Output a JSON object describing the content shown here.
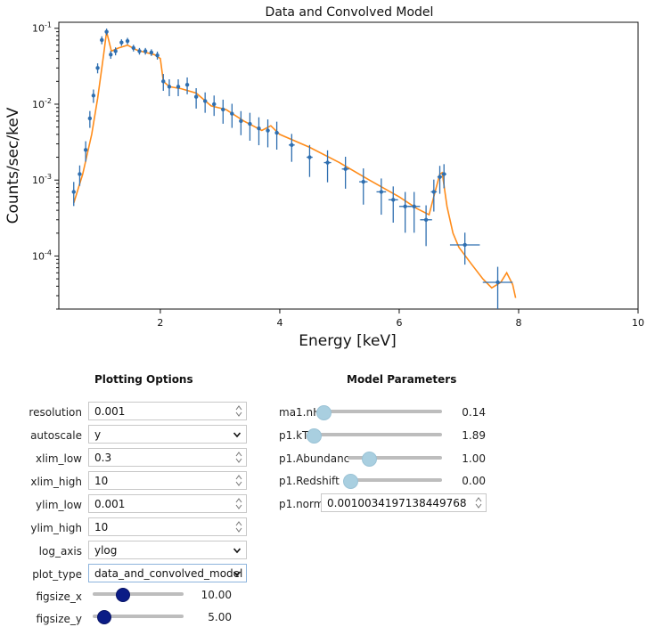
{
  "plot": {
    "title": "Data and Convolved Model",
    "xlabel": "Energy [keV]",
    "ylabel": "Counts/sec/keV",
    "xticks": [
      "2",
      "4",
      "6",
      "8",
      "10"
    ],
    "yticks": [
      "10^-1",
      "10^-2",
      "10^-3",
      "10^-4"
    ],
    "data_color": "#2f6fb0",
    "model_color": "#ff8c1a"
  },
  "chart_data": {
    "type": "scatter",
    "title": "Data and Convolved Model",
    "xlabel": "Energy [keV]",
    "ylabel": "Counts/sec/keV",
    "xlim": [
      0.3,
      10
    ],
    "ylim": [
      2e-05,
      0.12
    ],
    "yscale": "log",
    "series": [
      {
        "name": "data",
        "style": "errorbar",
        "x": [
          0.55,
          0.65,
          0.75,
          0.82,
          0.88,
          0.95,
          1.02,
          1.1,
          1.17,
          1.25,
          1.35,
          1.45,
          1.55,
          1.65,
          1.75,
          1.85,
          1.95,
          2.05,
          2.15,
          2.3,
          2.45,
          2.6,
          2.75,
          2.9,
          3.05,
          3.2,
          3.35,
          3.5,
          3.65,
          3.8,
          3.95,
          4.2,
          4.5,
          4.8,
          5.1,
          5.4,
          5.7,
          5.9,
          6.1,
          6.25,
          6.45,
          6.58,
          6.68,
          6.75,
          7.1,
          7.65
        ],
        "y": [
          0.0007,
          0.0012,
          0.0025,
          0.0065,
          0.013,
          0.03,
          0.07,
          0.09,
          0.045,
          0.05,
          0.065,
          0.068,
          0.055,
          0.05,
          0.05,
          0.048,
          0.044,
          0.02,
          0.017,
          0.017,
          0.018,
          0.0125,
          0.011,
          0.01,
          0.0085,
          0.0075,
          0.006,
          0.0055,
          0.0048,
          0.0045,
          0.0042,
          0.0029,
          0.002,
          0.0017,
          0.0014,
          0.00095,
          0.0007,
          0.00055,
          0.00045,
          0.00045,
          0.0003,
          0.0007,
          0.0011,
          0.0012,
          0.00014,
          4.5e-05
        ],
        "yerr_frac": [
          0.35,
          0.3,
          0.3,
          0.25,
          0.2,
          0.15,
          0.12,
          0.1,
          0.12,
          0.12,
          0.1,
          0.1,
          0.1,
          0.1,
          0.1,
          0.1,
          0.12,
          0.25,
          0.25,
          0.25,
          0.25,
          0.3,
          0.3,
          0.3,
          0.35,
          0.35,
          0.35,
          0.4,
          0.4,
          0.4,
          0.4,
          0.4,
          0.45,
          0.45,
          0.45,
          0.5,
          0.5,
          0.5,
          0.55,
          0.55,
          0.55,
          0.45,
          0.4,
          0.35,
          0.45,
          0.6
        ],
        "xerr": [
          0.02,
          0.02,
          0.02,
          0.02,
          0.02,
          0.02,
          0.02,
          0.02,
          0.02,
          0.02,
          0.02,
          0.02,
          0.02,
          0.02,
          0.02,
          0.02,
          0.02,
          0.02,
          0.02,
          0.03,
          0.03,
          0.03,
          0.03,
          0.03,
          0.03,
          0.03,
          0.03,
          0.03,
          0.03,
          0.03,
          0.03,
          0.05,
          0.05,
          0.06,
          0.06,
          0.07,
          0.08,
          0.08,
          0.1,
          0.1,
          0.1,
          0.05,
          0.04,
          0.04,
          0.25,
          0.25
        ]
      },
      {
        "name": "model",
        "style": "line",
        "x": [
          0.55,
          0.7,
          0.85,
          0.95,
          1.05,
          1.1,
          1.18,
          1.3,
          1.45,
          1.6,
          1.75,
          1.9,
          2.0,
          2.05,
          2.15,
          2.35,
          2.6,
          2.85,
          3.1,
          3.4,
          3.7,
          3.85,
          4.0,
          4.5,
          5.0,
          5.5,
          6.0,
          6.3,
          6.5,
          6.6,
          6.68,
          6.72,
          6.8,
          6.9,
          7.0,
          7.2,
          7.4,
          7.55,
          7.7,
          7.8,
          7.9,
          7.95
        ],
        "y": [
          0.0005,
          0.0012,
          0.004,
          0.012,
          0.045,
          0.09,
          0.05,
          0.055,
          0.06,
          0.052,
          0.048,
          0.045,
          0.04,
          0.02,
          0.017,
          0.016,
          0.014,
          0.0095,
          0.0085,
          0.006,
          0.0045,
          0.0052,
          0.004,
          0.0027,
          0.0017,
          0.001,
          0.0006,
          0.00042,
          0.00035,
          0.0007,
          0.0012,
          0.00125,
          0.00045,
          0.0002,
          0.00013,
          8e-05,
          5e-05,
          3.8e-05,
          4.5e-05,
          6e-05,
          4.2e-05,
          2.8e-05
        ]
      }
    ]
  },
  "plotting_options": {
    "title": "Plotting Options",
    "resolution": {
      "label": "resolution",
      "value": "0.001"
    },
    "autoscale": {
      "label": "autoscale",
      "value": "y"
    },
    "xlim_low": {
      "label": "xlim_low",
      "value": "0.3"
    },
    "xlim_high": {
      "label": "xlim_high",
      "value": "10"
    },
    "ylim_low": {
      "label": "ylim_low",
      "value": "0.001"
    },
    "ylim_high": {
      "label": "ylim_high",
      "value": "10"
    },
    "log_axis": {
      "label": "log_axis",
      "value": "ylog"
    },
    "plot_type": {
      "label": "plot_type",
      "value": "data_and_convolved_model"
    },
    "figsize_x": {
      "label": "figsize_x",
      "value": "10.00",
      "level": 0.3
    },
    "figsize_y": {
      "label": "figsize_y",
      "value": "5.00",
      "level": 0.1
    }
  },
  "model_parameters": {
    "title": "Model Parameters",
    "nH": {
      "label": "ma1.nH",
      "value": "0.14",
      "level": 0.02
    },
    "kT": {
      "label": "p1.kT",
      "value": "1.89",
      "level": 0.02
    },
    "abundanc": {
      "label": "p1.Abundanc",
      "value": "1.00",
      "level": 0.2
    },
    "redshift": {
      "label": "p1.Redshift",
      "value": "0.00",
      "level": 0.02
    },
    "norm": {
      "label": "p1.norm",
      "value": "0.0010034197138449768"
    }
  },
  "colors": {
    "knob_dark": "#0b1c86",
    "knob_light": "#a9cfe0",
    "track": "#bdbdbd"
  }
}
